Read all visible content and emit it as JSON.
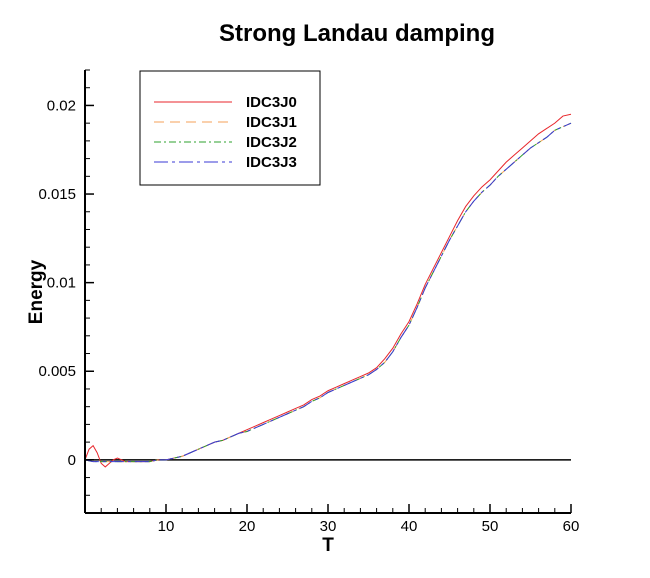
{
  "chart_data": {
    "type": "line",
    "title": "Strong Landau damping",
    "xlabel": "T",
    "ylabel": "Energy",
    "xlim": [
      0,
      60
    ],
    "ylim": [
      -0.003,
      0.022
    ],
    "xticks": [
      10,
      20,
      30,
      40,
      50,
      60
    ],
    "xtick_labels": [
      "10",
      "20",
      "30",
      "40",
      "50",
      "60"
    ],
    "yticks": [
      0,
      0.005,
      0.01,
      0.015,
      0.02
    ],
    "ytick_labels": [
      "0",
      "0.005",
      "0.01",
      "0.015",
      "0.02"
    ],
    "grid": false,
    "legend_position": "top-left",
    "series": [
      {
        "name": "IDC3J0",
        "color": "#e8262b",
        "dash": "solid",
        "points": [
          [
            0,
            0
          ],
          [
            0.5,
            0.0006
          ],
          [
            1,
            0.0008
          ],
          [
            1.5,
            0.0004
          ],
          [
            2,
            -0.0002
          ],
          [
            2.5,
            -0.0004
          ],
          [
            3,
            -0.0002
          ],
          [
            3.5,
            0
          ],
          [
            4,
            0.0001
          ],
          [
            4.5,
            0
          ],
          [
            5,
            -0.0001
          ],
          [
            6,
            -0.0001
          ],
          [
            7,
            -0.0001
          ],
          [
            8,
            -0.0001
          ],
          [
            9,
            0
          ],
          [
            10,
            0
          ],
          [
            11,
            0.0001
          ],
          [
            12,
            0.0002
          ],
          [
            13,
            0.0004
          ],
          [
            14,
            0.0006
          ],
          [
            15,
            0.0008
          ],
          [
            16,
            0.001
          ],
          [
            17,
            0.0011
          ],
          [
            18,
            0.0013
          ],
          [
            19,
            0.0015
          ],
          [
            20,
            0.0017
          ],
          [
            21,
            0.0019
          ],
          [
            22,
            0.0021
          ],
          [
            23,
            0.0023
          ],
          [
            24,
            0.0025
          ],
          [
            25,
            0.0027
          ],
          [
            26,
            0.0029
          ],
          [
            27,
            0.0031
          ],
          [
            28,
            0.0034
          ],
          [
            29,
            0.0036
          ],
          [
            30,
            0.0039
          ],
          [
            31,
            0.0041
          ],
          [
            32,
            0.0043
          ],
          [
            33,
            0.0045
          ],
          [
            34,
            0.0047
          ],
          [
            35,
            0.0049
          ],
          [
            36,
            0.0052
          ],
          [
            37,
            0.0057
          ],
          [
            38,
            0.0063
          ],
          [
            39,
            0.0071
          ],
          [
            40,
            0.0078
          ],
          [
            41,
            0.0088
          ],
          [
            42,
            0.0099
          ],
          [
            43,
            0.0108
          ],
          [
            44,
            0.0117
          ],
          [
            45,
            0.0126
          ],
          [
            46,
            0.0135
          ],
          [
            47,
            0.0143
          ],
          [
            48,
            0.0149
          ],
          [
            49,
            0.0154
          ],
          [
            50,
            0.0158
          ],
          [
            51,
            0.0163
          ],
          [
            52,
            0.0168
          ],
          [
            53,
            0.0172
          ],
          [
            54,
            0.0176
          ],
          [
            55,
            0.018
          ],
          [
            56,
            0.0184
          ],
          [
            57,
            0.0187
          ],
          [
            58,
            0.019
          ],
          [
            59,
            0.0194
          ],
          [
            60,
            0.0195
          ]
        ]
      },
      {
        "name": "IDC3J1",
        "color": "#f5a05a",
        "dash": "10,6",
        "points": [
          [
            0,
            0
          ],
          [
            1,
            -0.0001
          ],
          [
            2,
            -0.0001
          ],
          [
            3,
            -0.0001
          ],
          [
            4,
            -0.0001
          ],
          [
            5,
            -0.0001
          ],
          [
            6,
            -0.0001
          ],
          [
            7,
            -0.0001
          ],
          [
            8,
            -0.0001
          ],
          [
            9,
            0
          ],
          [
            10,
            0
          ],
          [
            11,
            0.0001
          ],
          [
            12,
            0.0002
          ],
          [
            13,
            0.0004
          ],
          [
            14,
            0.0006
          ],
          [
            15,
            0.0008
          ],
          [
            16,
            0.001
          ],
          [
            17,
            0.0011
          ],
          [
            18,
            0.0013
          ],
          [
            19,
            0.0015
          ],
          [
            20,
            0.0016
          ],
          [
            21,
            0.0018
          ],
          [
            22,
            0.002
          ],
          [
            23,
            0.0022
          ],
          [
            24,
            0.0024
          ],
          [
            25,
            0.0026
          ],
          [
            26,
            0.0028
          ],
          [
            27,
            0.003
          ],
          [
            28,
            0.0033
          ],
          [
            29,
            0.0035
          ],
          [
            30,
            0.0038
          ],
          [
            31,
            0.004
          ],
          [
            32,
            0.0042
          ],
          [
            33,
            0.0044
          ],
          [
            34,
            0.0046
          ],
          [
            35,
            0.0048
          ],
          [
            36,
            0.0051
          ],
          [
            37,
            0.0055
          ],
          [
            38,
            0.0061
          ],
          [
            39,
            0.0069
          ],
          [
            40,
            0.0076
          ],
          [
            41,
            0.0086
          ],
          [
            42,
            0.0097
          ],
          [
            43,
            0.0106
          ],
          [
            44,
            0.0115
          ],
          [
            45,
            0.0124
          ],
          [
            46,
            0.0132
          ],
          [
            47,
            0.014
          ],
          [
            48,
            0.0146
          ],
          [
            49,
            0.0151
          ],
          [
            50,
            0.0155
          ],
          [
            51,
            0.016
          ],
          [
            52,
            0.0164
          ],
          [
            53,
            0.0168
          ],
          [
            54,
            0.0172
          ],
          [
            55,
            0.0176
          ],
          [
            56,
            0.0179
          ],
          [
            57,
            0.0182
          ],
          [
            58,
            0.0186
          ],
          [
            59,
            0.0188
          ],
          [
            60,
            0.019
          ]
        ]
      },
      {
        "name": "IDC3J2",
        "color": "#2ca02c",
        "dash": "7,3,2,3",
        "points": [
          [
            0,
            0
          ],
          [
            1,
            -0.0001
          ],
          [
            2,
            -0.0001
          ],
          [
            3,
            -0.0001
          ],
          [
            4,
            -0.0001
          ],
          [
            5,
            -0.0001
          ],
          [
            6,
            -0.0001
          ],
          [
            7,
            -0.0001
          ],
          [
            8,
            -0.0001
          ],
          [
            9,
            0
          ],
          [
            10,
            0
          ],
          [
            11,
            0.0001
          ],
          [
            12,
            0.0002
          ],
          [
            13,
            0.0004
          ],
          [
            14,
            0.0006
          ],
          [
            15,
            0.0008
          ],
          [
            16,
            0.001
          ],
          [
            17,
            0.0011
          ],
          [
            18,
            0.0013
          ],
          [
            19,
            0.0015
          ],
          [
            20,
            0.0016
          ],
          [
            21,
            0.0018
          ],
          [
            22,
            0.002
          ],
          [
            23,
            0.0022
          ],
          [
            24,
            0.0024
          ],
          [
            25,
            0.0026
          ],
          [
            26,
            0.0028
          ],
          [
            27,
            0.003
          ],
          [
            28,
            0.0033
          ],
          [
            29,
            0.0035
          ],
          [
            30,
            0.0038
          ],
          [
            31,
            0.004
          ],
          [
            32,
            0.0042
          ],
          [
            33,
            0.0044
          ],
          [
            34,
            0.0046
          ],
          [
            35,
            0.0048
          ],
          [
            36,
            0.0051
          ],
          [
            37,
            0.0055
          ],
          [
            38,
            0.0061
          ],
          [
            39,
            0.0069
          ],
          [
            40,
            0.0076
          ],
          [
            41,
            0.0086
          ],
          [
            42,
            0.0097
          ],
          [
            43,
            0.0106
          ],
          [
            44,
            0.0115
          ],
          [
            45,
            0.0124
          ],
          [
            46,
            0.0132
          ],
          [
            47,
            0.014
          ],
          [
            48,
            0.0146
          ],
          [
            49,
            0.0151
          ],
          [
            50,
            0.0155
          ],
          [
            51,
            0.016
          ],
          [
            52,
            0.0164
          ],
          [
            53,
            0.0168
          ],
          [
            54,
            0.0172
          ],
          [
            55,
            0.0176
          ],
          [
            56,
            0.0179
          ],
          [
            57,
            0.0182
          ],
          [
            58,
            0.0186
          ],
          [
            59,
            0.0188
          ],
          [
            60,
            0.019
          ]
        ]
      },
      {
        "name": "IDC3J3",
        "color": "#3a3ad6",
        "dash": "14,4,3,4",
        "points": [
          [
            0,
            0
          ],
          [
            1,
            -0.0001
          ],
          [
            2,
            -0.0001
          ],
          [
            3,
            -0.0001
          ],
          [
            4,
            -0.0001
          ],
          [
            5,
            -0.0001
          ],
          [
            6,
            -0.0001
          ],
          [
            7,
            -0.0001
          ],
          [
            8,
            -0.0001
          ],
          [
            9,
            0
          ],
          [
            10,
            0
          ],
          [
            11,
            0.0001
          ],
          [
            12,
            0.0002
          ],
          [
            13,
            0.0004
          ],
          [
            14,
            0.0006
          ],
          [
            15,
            0.0008
          ],
          [
            16,
            0.001
          ],
          [
            17,
            0.0011
          ],
          [
            18,
            0.0013
          ],
          [
            19,
            0.0015
          ],
          [
            20,
            0.0016
          ],
          [
            21,
            0.0018
          ],
          [
            22,
            0.002
          ],
          [
            23,
            0.0022
          ],
          [
            24,
            0.0024
          ],
          [
            25,
            0.0026
          ],
          [
            26,
            0.0028
          ],
          [
            27,
            0.003
          ],
          [
            28,
            0.0033
          ],
          [
            29,
            0.0035
          ],
          [
            30,
            0.0038
          ],
          [
            31,
            0.004
          ],
          [
            32,
            0.0042
          ],
          [
            33,
            0.0044
          ],
          [
            34,
            0.0046
          ],
          [
            35,
            0.0048
          ],
          [
            36,
            0.0051
          ],
          [
            37,
            0.0055
          ],
          [
            38,
            0.0061
          ],
          [
            39,
            0.0069
          ],
          [
            40,
            0.0076
          ],
          [
            41,
            0.0086
          ],
          [
            42,
            0.0097
          ],
          [
            43,
            0.0106
          ],
          [
            44,
            0.0115
          ],
          [
            45,
            0.0124
          ],
          [
            46,
            0.0132
          ],
          [
            47,
            0.014
          ],
          [
            48,
            0.0146
          ],
          [
            49,
            0.0151
          ],
          [
            50,
            0.0155
          ],
          [
            51,
            0.016
          ],
          [
            52,
            0.0164
          ],
          [
            53,
            0.0168
          ],
          [
            54,
            0.0172
          ],
          [
            55,
            0.0176
          ],
          [
            56,
            0.0179
          ],
          [
            57,
            0.0182
          ],
          [
            58,
            0.0186
          ],
          [
            59,
            0.0188
          ],
          [
            60,
            0.019
          ]
        ]
      }
    ]
  }
}
